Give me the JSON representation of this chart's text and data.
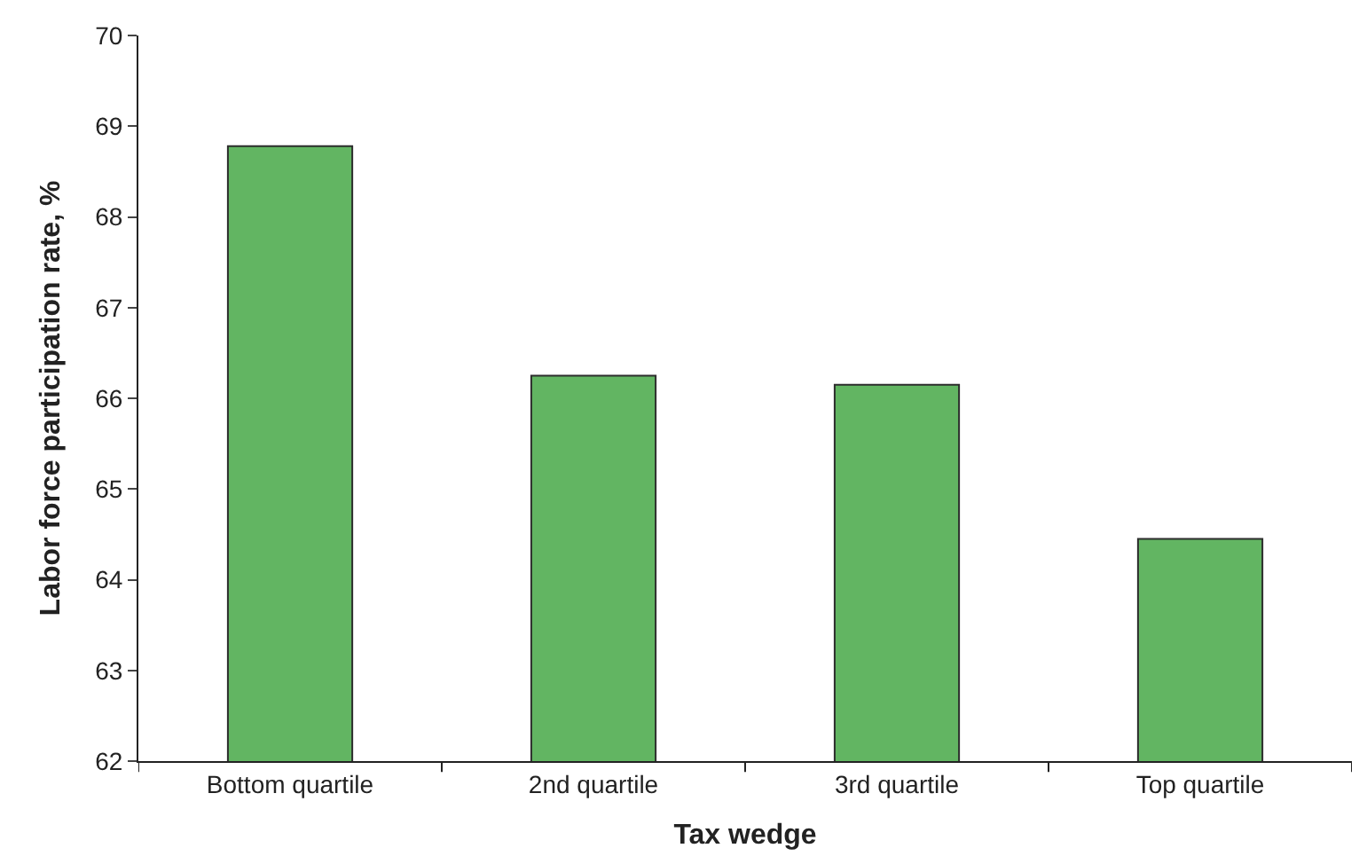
{
  "chart_data": {
    "type": "bar",
    "xlabel": "Tax wedge",
    "ylabel": "Labor force participation rate, %",
    "categories": [
      "Bottom quartile",
      "2nd quartile",
      "3rd quartile",
      "Top quartile"
    ],
    "values": [
      68.78,
      66.25,
      66.15,
      64.45
    ],
    "color": "#62b562",
    "ylim": [
      62,
      70
    ],
    "yticks": [
      62,
      63,
      64,
      65,
      66,
      67,
      68,
      69,
      70
    ]
  }
}
